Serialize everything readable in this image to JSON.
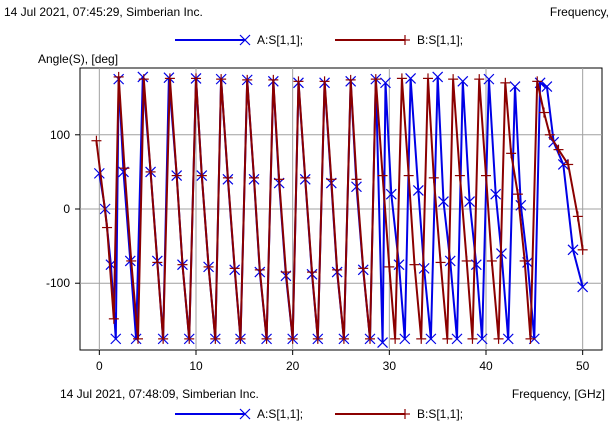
{
  "header_top": {
    "timestamp": "14 Jul 2021, 07:45:29, Simberian Inc.",
    "right_label": "Frequency,"
  },
  "header_bottom": {
    "timestamp": "14 Jul 2021, 07:48:09, Simberian Inc.",
    "right_label": "Frequency, [GHz]"
  },
  "colors": {
    "series_a": "#0000e6",
    "series_b": "#8b0000",
    "grid": "#a0a0a0"
  },
  "chart_data": {
    "type": "line",
    "title": "",
    "xlabel": "Frequency, [GHz]",
    "ylabel": "Angle(S), [deg]",
    "xlim": [
      -2,
      52
    ],
    "ylim": [
      -190,
      190
    ],
    "xticks": [
      0,
      10,
      20,
      30,
      40,
      50
    ],
    "yticks": [
      -100,
      0,
      100
    ],
    "grid": true,
    "legend": "top-center",
    "series": [
      {
        "name": "A:S[1,1];",
        "color": "#0000e6",
        "marker": "x",
        "x": [
          0,
          0.6,
          1.2,
          1.7,
          2.0,
          2.5,
          3.2,
          3.8,
          4.5,
          5.3,
          6.0,
          6.6,
          7.2,
          8.0,
          8.6,
          9.3,
          10.0,
          10.6,
          11.3,
          12.0,
          12.6,
          13.3,
          14.0,
          14.6,
          15.3,
          16.0,
          16.6,
          17.3,
          18.0,
          18.6,
          19.3,
          20.0,
          20.6,
          21.3,
          22.0,
          22.6,
          23.3,
          24.0,
          24.6,
          25.3,
          26.0,
          26.6,
          27.3,
          28.0,
          28.6,
          29.3,
          29.6,
          30.2,
          31.0,
          31.6,
          32.2,
          33.0,
          33.6,
          34.3,
          35.0,
          35.6,
          36.3,
          37.0,
          37.6,
          38.3,
          39.0,
          39.6,
          40.3,
          41.0,
          41.6,
          42.3,
          43.0,
          43.6,
          44.3,
          45.0,
          45.6,
          46.3,
          47.0,
          48.0,
          49.0,
          50.0
        ],
        "y": [
          48,
          0,
          -75,
          -175,
          175,
          50,
          -70,
          -175,
          178,
          50,
          -70,
          -175,
          177,
          45,
          -75,
          -175,
          176,
          45,
          -78,
          -175,
          175,
          40,
          -82,
          -175,
          174,
          40,
          -85,
          -175,
          172,
          35,
          -90,
          -175,
          170,
          40,
          -88,
          -175,
          170,
          35,
          -85,
          -175,
          172,
          30,
          -82,
          -175,
          175,
          -180,
          170,
          20,
          -75,
          -175,
          176,
          25,
          -80,
          -175,
          178,
          10,
          -70,
          -175,
          172,
          10,
          -75,
          -175,
          175,
          20,
          -60,
          -175,
          165,
          5,
          -72,
          -175,
          170,
          165,
          90,
          60,
          -55,
          -105
        ]
      },
      {
        "name": "B:S[1,1];",
        "color": "#8b0000",
        "marker": "+",
        "x": [
          -0.3,
          0.8,
          1.5,
          2.0,
          2.6,
          3.3,
          4.0,
          4.6,
          5.3,
          6.0,
          6.6,
          7.3,
          8.0,
          8.6,
          9.3,
          10.0,
          10.6,
          11.3,
          12.0,
          12.6,
          13.3,
          14.0,
          14.6,
          15.3,
          16.0,
          16.6,
          17.3,
          18.0,
          18.6,
          19.3,
          20.0,
          20.6,
          21.3,
          22.0,
          22.6,
          23.3,
          24.0,
          24.6,
          25.3,
          26.0,
          26.6,
          27.3,
          28.0,
          28.6,
          29.3,
          30.0,
          30.6,
          31.3,
          32.0,
          32.6,
          33.3,
          34.0,
          34.6,
          35.3,
          36.0,
          36.6,
          37.3,
          38.0,
          38.6,
          39.3,
          40.0,
          40.6,
          41.3,
          42.0,
          42.6,
          43.3,
          44.0,
          44.6,
          45.3,
          46.0,
          46.6,
          47.5,
          48.5,
          49.5,
          50.0
        ],
        "y": [
          92,
          -25,
          -148,
          178,
          55,
          -70,
          -175,
          175,
          50,
          -72,
          -175,
          176,
          45,
          -75,
          -175,
          176,
          45,
          -78,
          -175,
          175,
          42,
          -80,
          -175,
          174,
          42,
          -82,
          -175,
          174,
          40,
          -85,
          -175,
          172,
          42,
          -85,
          -175,
          172,
          40,
          -82,
          -175,
          174,
          40,
          -80,
          -175,
          175,
          45,
          -78,
          -175,
          176,
          45,
          -75,
          -175,
          176,
          42,
          -72,
          -175,
          175,
          45,
          -70,
          -175,
          175,
          45,
          -70,
          -175,
          170,
          75,
          20,
          -70,
          -175,
          172,
          130,
          100,
          80,
          60,
          -10,
          -55
        ]
      }
    ]
  }
}
